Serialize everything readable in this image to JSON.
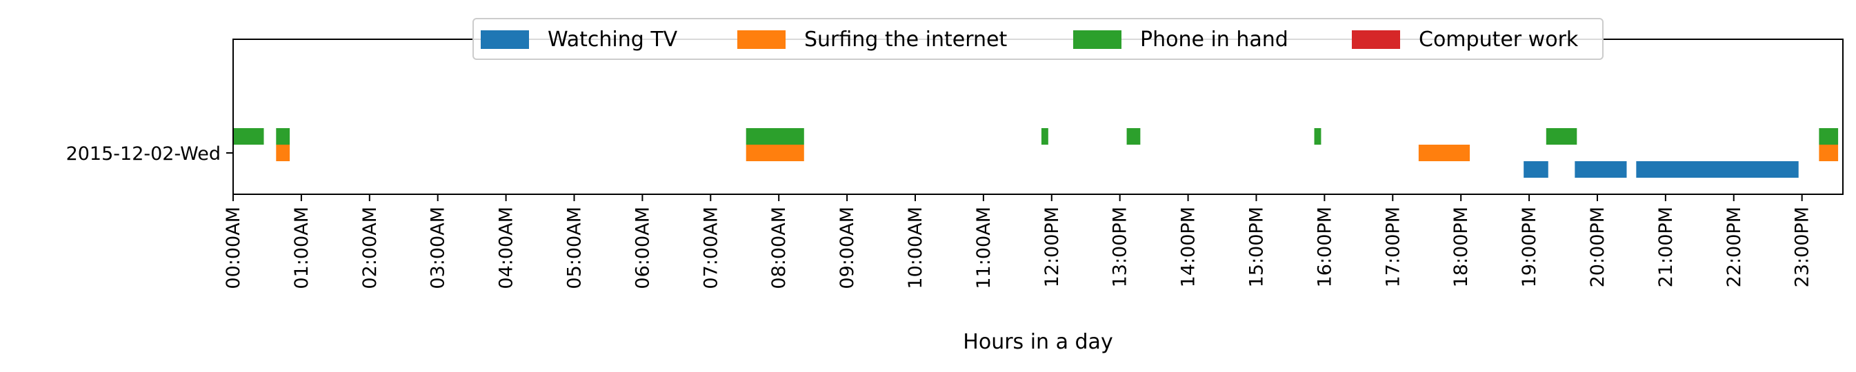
{
  "chart_data": {
    "type": "timeline",
    "xlabel": "Hours in a day",
    "ylabel": "",
    "y_categories": [
      "2015-12-02-Wed"
    ],
    "xlim": [
      0,
      23.6
    ],
    "x_ticks": [
      "00:00AM",
      "01:00AM",
      "02:00AM",
      "03:00AM",
      "04:00AM",
      "05:00AM",
      "06:00AM",
      "07:00AM",
      "08:00AM",
      "09:00AM",
      "10:00AM",
      "11:00AM",
      "12:00PM",
      "13:00PM",
      "14:00PM",
      "15:00PM",
      "16:00PM",
      "17:00PM",
      "18:00PM",
      "19:00PM",
      "20:00PM",
      "21:00PM",
      "22:00PM",
      "23:00PM"
    ],
    "legend_position": "upper-center",
    "series": [
      {
        "name": "Watching TV",
        "color": "#1f77b4",
        "lane": -1,
        "intervals": [
          [
            18.92,
            19.28
          ],
          [
            19.67,
            20.43
          ],
          [
            20.57,
            22.95
          ]
        ]
      },
      {
        "name": "Surfing the internet",
        "color": "#ff7f0e",
        "lane": 0,
        "intervals": [
          [
            0.63,
            0.83
          ],
          [
            7.52,
            8.37
          ],
          [
            17.38,
            18.13
          ],
          [
            23.25,
            23.53
          ]
        ]
      },
      {
        "name": "Phone in hand",
        "color": "#2ca02c",
        "lane": 1,
        "intervals": [
          [
            0.0,
            0.45
          ],
          [
            0.63,
            0.83
          ],
          [
            7.52,
            8.37
          ],
          [
            11.85,
            11.95
          ],
          [
            13.1,
            13.3
          ],
          [
            15.85,
            15.95
          ],
          [
            19.25,
            19.7
          ],
          [
            23.25,
            23.53
          ]
        ]
      },
      {
        "name": "Computer work",
        "color": "#d62728",
        "lane": 0,
        "intervals": []
      }
    ]
  }
}
